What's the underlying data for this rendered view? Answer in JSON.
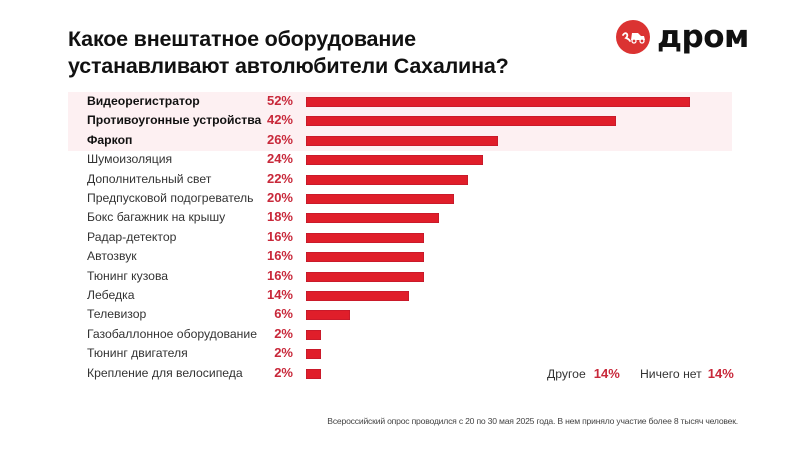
{
  "header": {
    "title_lines": [
      "Какое внештатное оборудование",
      "устанавливают автолюбители Сахалина?"
    ],
    "logo_text": "дром",
    "logo_icon": "drom-car-icon",
    "accent_color": "#db3332"
  },
  "chart_data": {
    "type": "bar",
    "orientation": "horizontal",
    "title": "Какое внештатное оборудование устанавливают автолюбители Сахалина?",
    "xlabel": "",
    "ylabel": "",
    "unit": "%",
    "xlim": [
      0,
      52
    ],
    "grid": false,
    "bar_color": "#e01e2a",
    "value_label_color": "#c8283a",
    "highlight_top_n": 3,
    "highlight_color": "#fdf0f2",
    "categories": [
      "Видеорегистратор",
      "Противоугонные устройства",
      "Фаркоп",
      "Шумоизоляция",
      "Дополнительный свет",
      "Предпусковой подогреватель",
      "Бокс багажник на крышу",
      "Радар-детектор",
      "Автозвук",
      "Тюнинг кузова",
      "Лебедка",
      "Телевизор",
      "Газобаллонное оборудование",
      "Тюнинг двигателя",
      "Крепление для велосипеда"
    ],
    "values": [
      52,
      42,
      26,
      24,
      22,
      20,
      18,
      16,
      16,
      16,
      14,
      6,
      2,
      2,
      2
    ],
    "value_labels": [
      "52%",
      "42%",
      "26%",
      "24%",
      "22%",
      "20%",
      "18%",
      "16%",
      "16%",
      "16%",
      "14%",
      "6%",
      "2%",
      "2%",
      "2%"
    ],
    "extra": [
      {
        "label": "Другое",
        "value": 14,
        "value_label": "14%"
      },
      {
        "label": "Ничего нет",
        "value": 14,
        "value_label": "14%"
      }
    ],
    "footnote": "Всероссийский опрос проводился с 20 по 30 мая 2025 года. В нем приняло участие более 8 тысяч человек."
  }
}
